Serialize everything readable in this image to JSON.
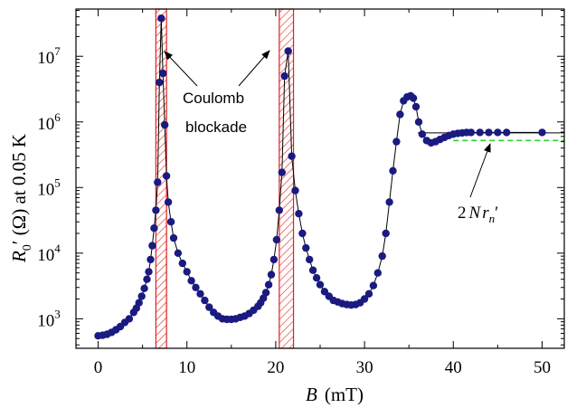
{
  "chart_data": {
    "type": "scatter",
    "xlabel_symbol": "B",
    "xlabel_unit": "(mT)",
    "ylabel_symbol": "R",
    "ylabel_sub": "0",
    "ylabel_rest": "′ (Ω)  at 0.05 K",
    "x_ticks": [
      0,
      10,
      20,
      30,
      40,
      50
    ],
    "y_ticks": [
      {
        "base": "10",
        "exp": "3"
      },
      {
        "base": "10",
        "exp": "4"
      },
      {
        "base": "10",
        "exp": "5"
      },
      {
        "base": "10",
        "exp": "6"
      },
      {
        "base": "10",
        "exp": "7"
      }
    ],
    "xlim": [
      -2.5,
      52.5
    ],
    "ylim_log10": [
      2.55,
      7.72
    ],
    "y_scale": "log",
    "marker_color": "#1a1a80",
    "line_color": "#000000",
    "band_color": "#e0201c",
    "dash_color": "#33cc33",
    "series": [
      {
        "x": [
          0,
          0.5,
          1,
          1.5,
          2,
          2.5,
          3,
          3.5,
          4,
          4.3,
          4.6,
          4.9,
          5.2,
          5.5,
          5.7,
          5.9,
          6.1,
          6.3,
          6.5,
          6.7,
          6.9,
          7.1,
          7.3,
          7.5,
          7.7,
          7.9,
          8.2,
          8.5,
          9,
          9.5,
          10,
          10.5,
          11,
          11.5,
          12,
          12.5,
          13,
          13.5,
          14,
          14.5,
          15,
          15.5,
          16,
          16.5,
          17,
          17.5,
          18,
          18.3,
          18.6,
          18.9,
          19.2,
          19.5,
          19.8,
          20.1,
          20.4,
          20.7,
          21.0,
          21.4,
          21.8,
          22.2,
          22.6,
          23,
          23.4,
          23.8,
          24.2,
          24.6,
          25,
          25.5,
          26,
          26.5,
          27,
          27.5,
          28,
          28.5,
          29,
          29.5,
          30,
          30.5,
          31,
          31.5,
          32,
          32.4,
          32.8,
          33.2,
          33.6,
          34,
          34.4,
          34.8,
          35.2,
          35.5,
          35.8,
          36.1,
          36.5,
          37,
          37.5,
          38,
          38.5,
          39,
          39.5,
          40,
          40.5,
          41,
          41.5,
          42,
          43,
          44,
          45,
          46,
          50
        ],
        "y": [
          550,
          560,
          580,
          620,
          680,
          760,
          880,
          1000,
          1250,
          1450,
          1750,
          2200,
          2900,
          4000,
          5200,
          8000,
          13000,
          24000,
          45000,
          120000,
          4000000,
          38000000,
          5500000,
          900000,
          150000,
          60000,
          30000,
          17000,
          10000,
          7000,
          5200,
          3800,
          3000,
          2400,
          1900,
          1500,
          1250,
          1100,
          1000,
          980,
          980,
          1000,
          1050,
          1100,
          1200,
          1350,
          1550,
          1750,
          2050,
          2500,
          3300,
          4700,
          8000,
          16000,
          45000,
          170000,
          5000000,
          12000000,
          300000,
          90000,
          40000,
          20000,
          12000,
          8000,
          5500,
          4200,
          3300,
          2600,
          2200,
          1900,
          1800,
          1700,
          1650,
          1620,
          1650,
          1750,
          2000,
          2400,
          3200,
          5000,
          9000,
          20000,
          60000,
          180000,
          500000,
          1300000,
          2100000,
          2400000,
          2500000,
          2300000,
          1700000,
          1000000,
          650000,
          520000,
          480000,
          500000,
          540000,
          580000,
          620000,
          650000,
          670000,
          680000,
          690000,
          690000,
          690000,
          690000,
          690000,
          690000,
          690000
        ]
      }
    ],
    "bands": [
      {
        "x0": 6.5,
        "x1": 7.7
      },
      {
        "x0": 20.4,
        "x1": 22.0
      }
    ],
    "plateau_line": {
      "x0": 36,
      "x1": 52.5,
      "y": 680000
    },
    "reference_line": {
      "x0": 40,
      "x1": 52.5,
      "y": 520000
    },
    "annotations": {
      "coulomb_line1": "Coulomb",
      "coulomb_line2": "blockade",
      "formula_two": "2",
      "formula_N": "N",
      "formula_r": "r",
      "formula_sub": "n",
      "formula_prime": "′"
    }
  }
}
